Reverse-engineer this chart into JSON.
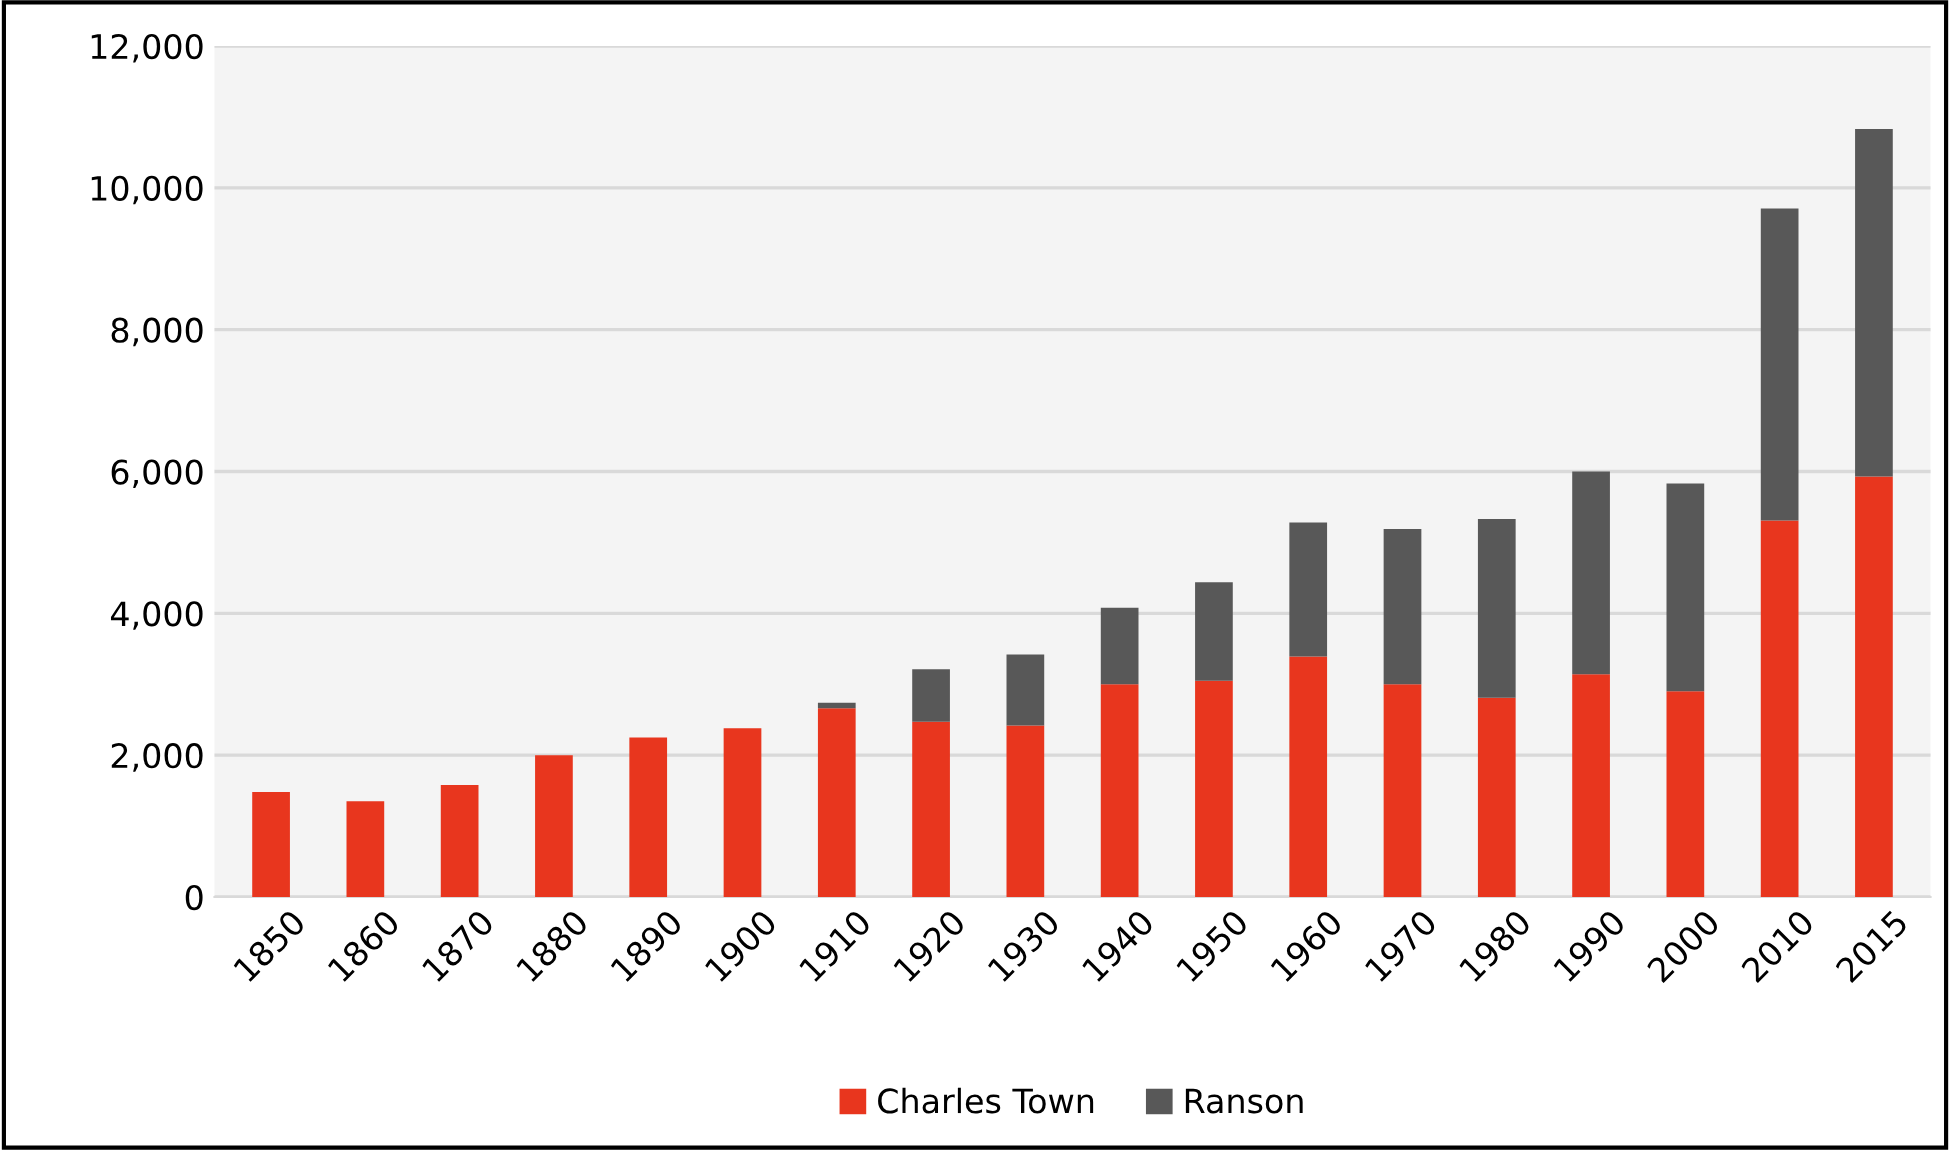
{
  "chart_data": {
    "type": "bar",
    "stacked": true,
    "categories": [
      "1850",
      "1860",
      "1870",
      "1880",
      "1890",
      "1900",
      "1910",
      "1920",
      "1930",
      "1940",
      "1950",
      "1960",
      "1970",
      "1980",
      "1990",
      "2000",
      "2010",
      "2015"
    ],
    "series": [
      {
        "name": "Charles Town",
        "color": "#e8361e",
        "values": [
          1480,
          1350,
          1580,
          2000,
          2250,
          2380,
          2660,
          2470,
          2420,
          3000,
          3050,
          3390,
          3000,
          2810,
          3140,
          2900,
          5310,
          5930
        ]
      },
      {
        "name": "Ranson",
        "color": "#585858",
        "values": [
          0,
          0,
          0,
          0,
          0,
          0,
          80,
          740,
          1000,
          1080,
          1390,
          1890,
          2190,
          2520,
          2860,
          2930,
          4400,
          4900
        ]
      }
    ],
    "ylim": [
      0,
      12000
    ],
    "yticks": [
      {
        "value": 0,
        "label": "0"
      },
      {
        "value": 2000,
        "label": "2,000"
      },
      {
        "value": 4000,
        "label": "4,000"
      },
      {
        "value": 6000,
        "label": "6,000"
      },
      {
        "value": 8000,
        "label": "8,000"
      },
      {
        "value": 10000,
        "label": "10,000"
      },
      {
        "value": 12000,
        "label": "12,000"
      }
    ],
    "grid": "y",
    "legend": "bottom"
  }
}
